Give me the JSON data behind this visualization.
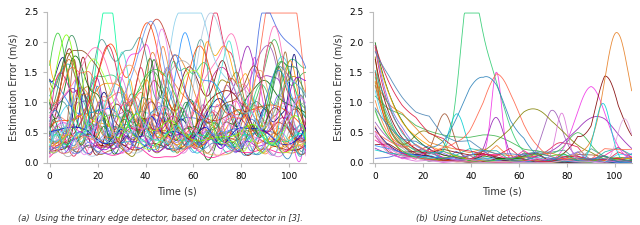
{
  "title_a": "(a)  Using the trinary edge detector, based on crater detector in [3].",
  "title_b": "(b)  Using LunaNet detections.",
  "xlabel": "Time (s)",
  "ylabel": "Estimation Error (m/s)",
  "xlim_a": [
    -1,
    107
  ],
  "xlim_b": [
    -1,
    107
  ],
  "ylim": [
    0.0,
    2.5
  ],
  "yticks": [
    0.0,
    0.5,
    1.0,
    1.5,
    2.0,
    2.5
  ],
  "xticks_a": [
    0,
    20,
    40,
    60,
    80,
    100
  ],
  "xticks_b": [
    0,
    20,
    40,
    60,
    80,
    100
  ],
  "n_lines_a": 55,
  "n_lines_b": 35,
  "seed_a": 12,
  "seed_b": 77,
  "t_end": 107,
  "n_points": 500,
  "figsize": [
    6.4,
    2.25
  ],
  "dpi": 100
}
